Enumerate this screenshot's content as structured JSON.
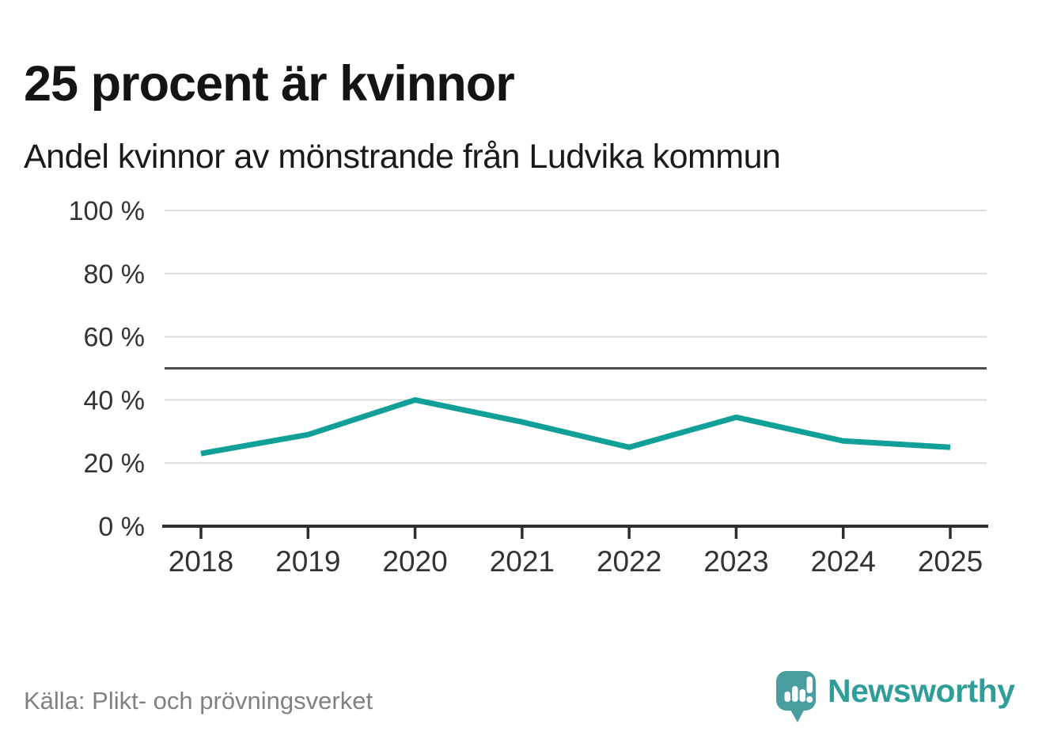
{
  "header": {
    "title": "25 procent är kvinnor",
    "subtitle": "Andel kvinnor av mönstrande från Ludvika kommun"
  },
  "chart_data": {
    "type": "line",
    "title": "25 procent är kvinnor",
    "subtitle": "Andel kvinnor av mönstrande från Ludvika kommun",
    "categories": [
      "2018",
      "2019",
      "2020",
      "2021",
      "2022",
      "2023",
      "2024",
      "2025"
    ],
    "values": [
      23,
      29,
      40,
      33,
      25,
      34.5,
      27,
      25
    ],
    "unit": "%",
    "xlabel": "",
    "ylabel": "",
    "ylim": [
      0,
      100
    ],
    "yticks": [
      0,
      20,
      40,
      60,
      80,
      100
    ],
    "ytick_labels": [
      "0 %",
      "20 %",
      "40 %",
      "60 %",
      "80 %",
      "100 %"
    ],
    "reference_line": 50,
    "grid": true,
    "legend": "none"
  },
  "footer": {
    "source": "Källa: Plikt- och prövningsverket",
    "brand": "Newsworthy"
  },
  "colors": {
    "line": "#11a098",
    "grid": "#dcdcdc",
    "reference": "#4d4d4d",
    "axis": "#2e2e2e",
    "title_text": "#141414",
    "subtitle_text": "#1a1a1a",
    "tick_text": "#333333",
    "source_text": "#818181",
    "logo_bubble": "#4a9d9e",
    "wordmark": "#2f9e99"
  }
}
